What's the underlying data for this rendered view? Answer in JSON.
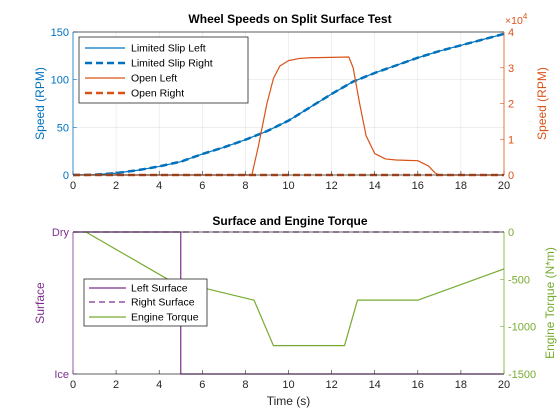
{
  "chart_data": [
    {
      "type": "line",
      "title": "Wheel Speeds on Split Surface Test",
      "xlim": [
        0,
        20
      ],
      "x_ticks": [
        "0",
        "2",
        "4",
        "6",
        "8",
        "10",
        "12",
        "14",
        "16",
        "18",
        "20"
      ],
      "left_axis": {
        "label": "Speed (RPM)",
        "ylim": [
          0,
          150
        ],
        "ticks": [
          "0",
          "50",
          "100",
          "150"
        ],
        "color": "#0072BD"
      },
      "right_axis": {
        "label": "Speed (RPM)",
        "ylim": [
          0,
          40000
        ],
        "ticks": [
          "0",
          "1",
          "2",
          "3",
          "4"
        ],
        "exponent": "×10",
        "exponent_power": "4",
        "color": "#D95319"
      },
      "legend_position": "top-left",
      "series": [
        {
          "name": "Limited Slip Left",
          "axis": "left",
          "color": "#0072BD",
          "dashed": false,
          "x": [
            0,
            1,
            2,
            3,
            4,
            5,
            6,
            7,
            8,
            9,
            10,
            11,
            12,
            13,
            14,
            15,
            16,
            17,
            18,
            19,
            20
          ],
          "y": [
            0,
            0.3,
            2,
            5,
            9,
            14,
            22,
            29,
            37,
            46,
            57,
            71,
            85,
            98,
            107,
            115,
            123,
            130,
            136,
            142,
            148
          ]
        },
        {
          "name": "Limited Slip Right",
          "axis": "left",
          "color": "#0072BD",
          "dashed": true,
          "x": [
            0,
            1,
            2,
            3,
            4,
            5,
            6,
            7,
            8,
            9,
            10,
            11,
            12,
            13,
            14,
            15,
            16,
            17,
            18,
            19,
            20
          ],
          "y": [
            0,
            0.3,
            2,
            5,
            9,
            14,
            22,
            29,
            37,
            46,
            57,
            71,
            85,
            98,
            107,
            115,
            123,
            130,
            136,
            142,
            148
          ]
        },
        {
          "name": "Open Left",
          "axis": "right",
          "color": "#D95319",
          "dashed": false,
          "x": [
            0,
            8.3,
            8.6,
            9.0,
            9.3,
            9.6,
            10.0,
            10.5,
            11.0,
            12.0,
            12.8,
            13.0,
            13.3,
            13.6,
            14.0,
            14.5,
            15.0,
            15.5,
            16.0,
            16.5,
            16.8,
            17.0,
            20
          ],
          "y": [
            0,
            0,
            8000,
            20000,
            27000,
            30500,
            32000,
            32600,
            32800,
            32900,
            33000,
            30000,
            20000,
            11000,
            6000,
            4500,
            4200,
            4100,
            4000,
            2500,
            600,
            0,
            0
          ]
        },
        {
          "name": "Open Right",
          "axis": "right",
          "color": "#D95319",
          "dashed": true,
          "x": [
            0,
            20
          ],
          "y": [
            0,
            0
          ]
        }
      ]
    },
    {
      "type": "line",
      "title": "Surface and Engine Torque",
      "xlabel": "Time (s)",
      "xlim": [
        0,
        20
      ],
      "x_ticks": [
        "0",
        "2",
        "4",
        "6",
        "8",
        "10",
        "12",
        "14",
        "16",
        "18",
        "20"
      ],
      "left_axis": {
        "label": "Surface",
        "ylim": [
          0,
          1
        ],
        "ticks": [
          "Ice",
          "Dry"
        ],
        "tick_values": [
          0,
          1
        ],
        "color": "#7E2F8E"
      },
      "right_axis": {
        "label": "Engine Torque (N*m)",
        "ylim": [
          -1500,
          0
        ],
        "ticks": [
          "0",
          "-500",
          "-1000",
          "-1500"
        ],
        "color": "#77AC30"
      },
      "legend_position": "center-left",
      "series": [
        {
          "name": "Left Surface",
          "axis": "left",
          "color": "#7E2F8E",
          "dashed": false,
          "x": [
            0,
            5,
            5,
            20
          ],
          "y": [
            1,
            1,
            0,
            0
          ]
        },
        {
          "name": "Right Surface",
          "axis": "left",
          "color": "#7E2F8E",
          "dashed": true,
          "x": [
            0,
            20
          ],
          "y": [
            1,
            1
          ]
        },
        {
          "name": "Engine Torque",
          "axis": "right",
          "color": "#77AC30",
          "dashed": false,
          "x": [
            0.6,
            4.4,
            8.4,
            9.3,
            12.6,
            13.2,
            16,
            20
          ],
          "y": [
            0,
            -500,
            -720,
            -1200,
            -1200,
            -720,
            -720,
            -390
          ]
        }
      ]
    }
  ]
}
